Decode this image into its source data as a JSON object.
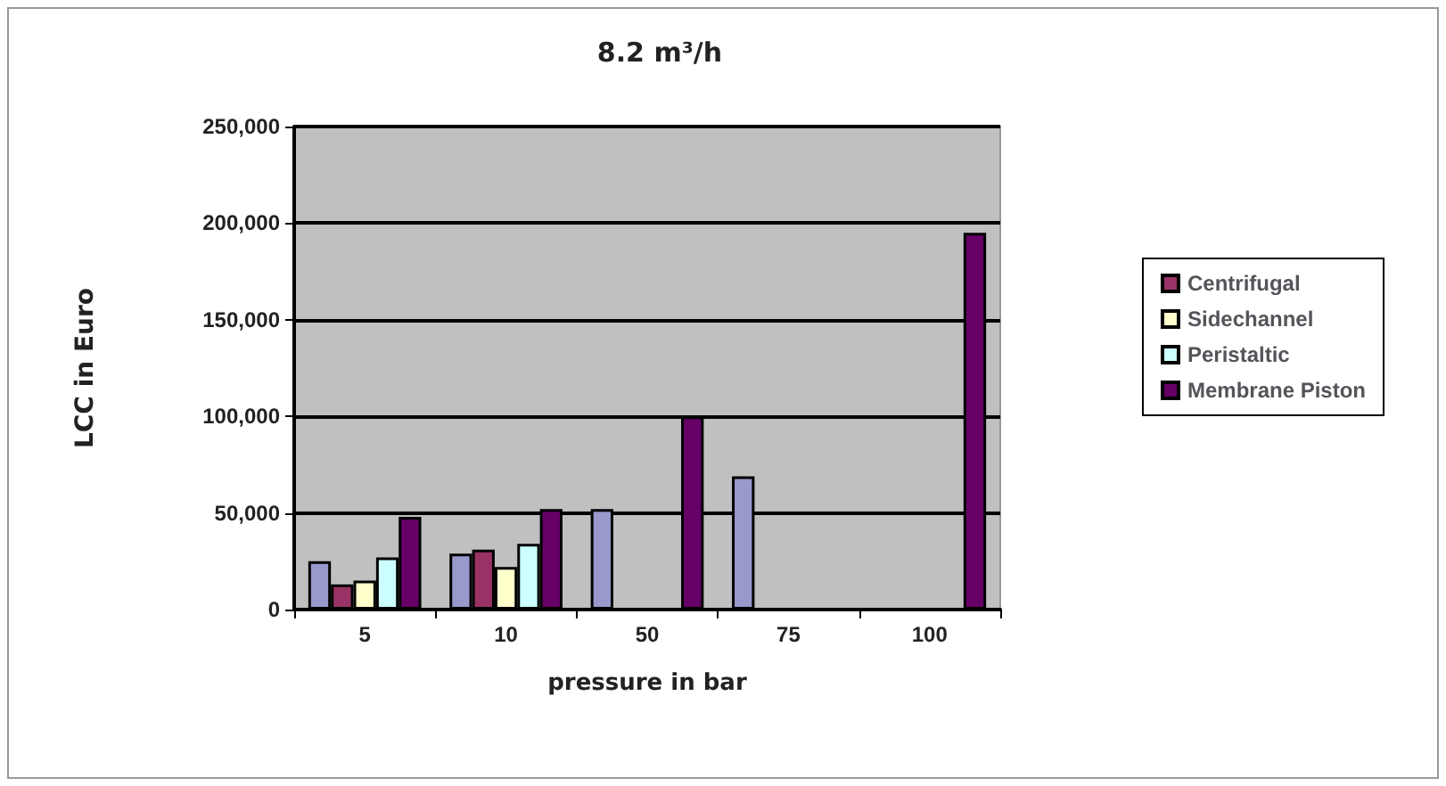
{
  "chart_data": {
    "type": "bar",
    "title": "8.2 m³/h",
    "xlabel": "pressure in bar",
    "ylabel": "LCC in Euro",
    "categories": [
      "5",
      "10",
      "50",
      "75",
      "100"
    ],
    "series": [
      {
        "color": "#9999cc",
        "values": [
          25000,
          29000,
          52000,
          69000,
          null
        ]
      },
      {
        "name": "Centrifugal",
        "color": "#993366",
        "values": [
          13000,
          31000,
          null,
          null,
          null
        ]
      },
      {
        "name": "Sidechannel",
        "color": "#ffffcc",
        "values": [
          15000,
          22000,
          null,
          null,
          null
        ]
      },
      {
        "name": "Peristaltic",
        "color": "#ccffff",
        "values": [
          27000,
          34000,
          null,
          null,
          null
        ]
      },
      {
        "name": "Membrane Piston",
        "color": "#660066",
        "values": [
          48000,
          52000,
          100000,
          null,
          195000
        ]
      }
    ],
    "ylim": [
      0,
      250000
    ],
    "yticks": [
      0,
      {
        "value": 50000,
        "label": "50,000"
      },
      {
        "value": 100000,
        "label": "100,000"
      },
      {
        "value": 150000,
        "label": "150,000"
      },
      {
        "value": 200000,
        "label": "200,000"
      },
      {
        "value": 250000,
        "label": "250,000"
      }
    ],
    "grid": "y",
    "legend": "right"
  }
}
